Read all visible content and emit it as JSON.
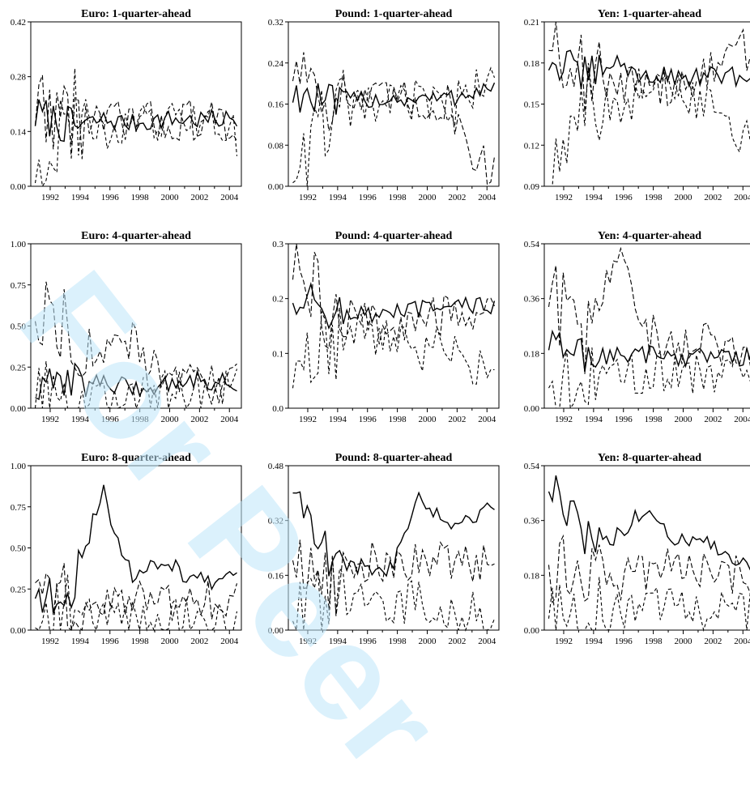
{
  "watermark": "For Peer",
  "charts": [
    {
      "title": "Euro: 1-quarter-ahead",
      "yticks": [
        "0.00",
        "0.14",
        "0.28",
        "0.42"
      ],
      "ylim": [
        0,
        0.42
      ]
    },
    {
      "title": "Pound: 1-quarter-ahead",
      "yticks": [
        "0.00",
        "0.08",
        "0.16",
        "0.24",
        "0.32"
      ],
      "ylim": [
        0,
        0.32
      ]
    },
    {
      "title": "Yen: 1-quarter-ahead",
      "yticks": [
        "0.09",
        "0.12",
        "0.15",
        "0.18",
        "0.21"
      ],
      "ylim": [
        0.09,
        0.21
      ]
    },
    {
      "title": "Euro: 4-quarter-ahead",
      "yticks": [
        "0.00",
        "0.25",
        "0.50",
        "0.75",
        "1.00"
      ],
      "ylim": [
        0,
        1.0
      ]
    },
    {
      "title": "Pound: 4-quarter-ahead",
      "yticks": [
        "0.0",
        "0.1",
        "0.2",
        "0.3"
      ],
      "ylim": [
        0,
        0.3
      ]
    },
    {
      "title": "Yen: 4-quarter-ahead",
      "yticks": [
        "0.00",
        "0.18",
        "0.36",
        "0.54"
      ],
      "ylim": [
        0,
        0.54
      ]
    },
    {
      "title": "Euro: 8-quarter-ahead",
      "yticks": [
        "0.00",
        "0.25",
        "0.50",
        "0.75",
        "1.00"
      ],
      "ylim": [
        0,
        1.0
      ]
    },
    {
      "title": "Pound: 8-quarter-ahead",
      "yticks": [
        "0.00",
        "0.16",
        "0.32",
        "0.48"
      ],
      "ylim": [
        0,
        0.48
      ]
    },
    {
      "title": "Yen: 8-quarter-ahead",
      "yticks": [
        "0.00",
        "0.18",
        "0.36",
        "0.54"
      ],
      "ylim": [
        0,
        0.54
      ]
    }
  ],
  "xticks": [
    "1992",
    "1994",
    "1996",
    "1998",
    "2000",
    "2002",
    "2004"
  ],
  "chart_data": [
    {
      "type": "line",
      "title": "Euro: 1-quarter-ahead",
      "x": [
        "1992",
        "1994",
        "1996",
        "1998",
        "2000",
        "2002",
        "2004"
      ],
      "ylim": [
        0,
        0.42
      ],
      "series": [
        {
          "values": [
            0.18,
            0.15,
            0.17,
            0.16,
            0.17,
            0.17,
            0.17
          ]
        },
        {
          "values": [
            0.21,
            0.17,
            0.16,
            0.17,
            0.16,
            0.17,
            0.16
          ]
        },
        {
          "values": [
            0.06,
            0.2,
            0.12,
            0.17,
            0.15,
            0.18,
            0.13
          ]
        }
      ]
    },
    {
      "type": "line",
      "title": "Pound: 1-quarter-ahead",
      "x": [
        "1992",
        "1994",
        "1996",
        "1998",
        "2000",
        "2002",
        "2004"
      ],
      "ylim": [
        0,
        0.32
      ],
      "series": [
        {
          "values": [
            0.18,
            0.16,
            0.17,
            0.17,
            0.17,
            0.17,
            0.19
          ]
        },
        {
          "values": [
            0.24,
            0.18,
            0.16,
            0.17,
            0.16,
            0.16,
            0.04
          ]
        },
        {
          "values": [
            0.04,
            0.14,
            0.15,
            0.16,
            0.17,
            0.15,
            0.2
          ]
        }
      ]
    },
    {
      "type": "line",
      "title": "Yen: 1-quarter-ahead",
      "x": [
        "1992",
        "1994",
        "1996",
        "1998",
        "2000",
        "2002",
        "2004"
      ],
      "ylim": [
        0.09,
        0.21
      ],
      "series": [
        {
          "values": [
            0.18,
            0.17,
            0.18,
            0.17,
            0.17,
            0.17,
            0.17
          ]
        },
        {
          "values": [
            0.2,
            0.17,
            0.16,
            0.17,
            0.16,
            0.17,
            0.19
          ]
        },
        {
          "values": [
            0.1,
            0.16,
            0.14,
            0.16,
            0.16,
            0.15,
            0.13
          ]
        }
      ]
    },
    {
      "type": "line",
      "title": "Euro: 4-quarter-ahead",
      "x": [
        "1992",
        "1994",
        "1996",
        "1998",
        "2000",
        "2002",
        "2004"
      ],
      "ylim": [
        0,
        1.0
      ],
      "series": [
        {
          "values": [
            0.1,
            0.2,
            0.15,
            0.12,
            0.14,
            0.18,
            0.16
          ]
        },
        {
          "values": [
            0.6,
            0.5,
            0.3,
            0.4,
            0.2,
            0.15,
            0.15
          ]
        },
        {
          "values": [
            0.02,
            0.1,
            0.05,
            0.08,
            0.1,
            0.12,
            0.14
          ]
        }
      ]
    },
    {
      "type": "line",
      "title": "Pound: 4-quarter-ahead",
      "x": [
        "1992",
        "1994",
        "1996",
        "1998",
        "2000",
        "2002",
        "2004"
      ],
      "ylim": [
        0,
        0.3
      ],
      "series": [
        {
          "values": [
            0.2,
            0.18,
            0.17,
            0.17,
            0.18,
            0.18,
            0.19
          ]
        },
        {
          "values": [
            0.25,
            0.17,
            0.16,
            0.15,
            0.16,
            0.17,
            0.18
          ]
        },
        {
          "values": [
            0.05,
            0.12,
            0.14,
            0.13,
            0.1,
            0.12,
            0.07
          ]
        }
      ]
    },
    {
      "type": "line",
      "title": "Yen: 4-quarter-ahead",
      "x": [
        "1992",
        "1994",
        "1996",
        "1998",
        "2000",
        "2002",
        "2004"
      ],
      "ylim": [
        0,
        0.54
      ],
      "series": [
        {
          "values": [
            0.2,
            0.18,
            0.17,
            0.18,
            0.17,
            0.17,
            0.17
          ]
        },
        {
          "values": [
            0.35,
            0.22,
            0.5,
            0.25,
            0.2,
            0.22,
            0.18
          ]
        },
        {
          "values": [
            0.08,
            0.12,
            0.1,
            0.12,
            0.12,
            0.11,
            0.14
          ]
        }
      ]
    },
    {
      "type": "line",
      "title": "Euro: 8-quarter-ahead",
      "x": [
        "1992",
        "1994",
        "1996",
        "1998",
        "2000",
        "2002",
        "2004"
      ],
      "ylim": [
        0,
        1.0
      ],
      "series": [
        {
          "values": [
            0.2,
            0.25,
            0.85,
            0.3,
            0.45,
            0.3,
            0.3
          ]
        },
        {
          "values": [
            0.3,
            0.15,
            0.1,
            0.2,
            0.2,
            0.15,
            0.2
          ]
        },
        {
          "values": [
            0.02,
            0.1,
            0.05,
            0.05,
            0.05,
            0.1,
            0.05
          ]
        }
      ]
    },
    {
      "type": "line",
      "title": "Pound: 8-quarter-ahead",
      "x": [
        "1992",
        "1994",
        "1996",
        "1998",
        "2000",
        "2002",
        "2004"
      ],
      "ylim": [
        0,
        0.48
      ],
      "series": [
        {
          "values": [
            0.4,
            0.2,
            0.18,
            0.18,
            0.4,
            0.3,
            0.35
          ]
        },
        {
          "values": [
            0.2,
            0.15,
            0.2,
            0.2,
            0.2,
            0.2,
            0.2
          ]
        },
        {
          "values": [
            0.02,
            0.1,
            0.08,
            0.05,
            0.1,
            0.05,
            0.05
          ]
        }
      ]
    },
    {
      "type": "line",
      "title": "Yen: 8-quarter-ahead",
      "x": [
        "1992",
        "1994",
        "1996",
        "1998",
        "2000",
        "2002",
        "2004"
      ],
      "ylim": [
        0,
        0.54
      ],
      "series": [
        {
          "values": [
            0.45,
            0.3,
            0.3,
            0.4,
            0.3,
            0.28,
            0.22
          ]
        },
        {
          "values": [
            0.2,
            0.2,
            0.15,
            0.2,
            0.2,
            0.2,
            0.18
          ]
        },
        {
          "values": [
            0.02,
            0.05,
            0.05,
            0.08,
            0.1,
            0.05,
            0.06
          ]
        }
      ]
    }
  ]
}
